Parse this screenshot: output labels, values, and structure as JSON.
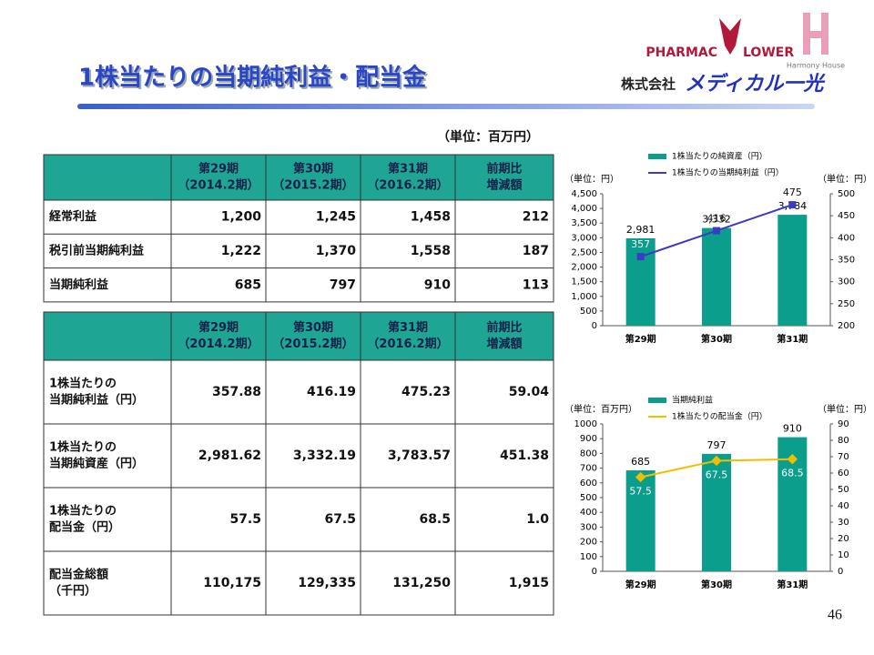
{
  "header": {
    "title": "1株当たりの当期純利益・配当金",
    "brand": "PHARMAC",
    "brand2": "LOWER",
    "brand3": "Harmony House",
    "company": "株式会社",
    "company2": "メディカル一光"
  },
  "unit": "（単位：百万円）",
  "table1": {
    "columns": [
      [
        "第29期",
        "（2014.2期）"
      ],
      [
        "第30期",
        "（2015.2期）"
      ],
      [
        "第31期",
        "（2016.2期）"
      ],
      [
        "前期比",
        "増減額"
      ]
    ],
    "rows": [
      {
        "label": [
          "経常利益"
        ],
        "values": [
          "1,200",
          "1,245",
          "1,458",
          "212"
        ]
      },
      {
        "label": [
          "税引前当期純利益"
        ],
        "values": [
          "1,222",
          "1,370",
          "1,558",
          "187"
        ]
      },
      {
        "label": [
          "当期純利益"
        ],
        "values": [
          "685",
          "797",
          "910",
          "113"
        ]
      }
    ]
  },
  "table2": {
    "columns": [
      [
        "第29期",
        "（2014.2期）"
      ],
      [
        "第30期",
        "（2015.2期）"
      ],
      [
        "第31期",
        "（2016.2期）"
      ],
      [
        "前期比",
        "増減額"
      ]
    ],
    "rows": [
      {
        "label": [
          "1株当たりの",
          "当期純利益（円）"
        ],
        "values": [
          "357.88",
          "416.19",
          "475.23",
          "59.04"
        ]
      },
      {
        "label": [
          "1株当たりの",
          "当期純資産（円）"
        ],
        "values": [
          "2,981.62",
          "3,332.19",
          "3,783.57",
          "451.38"
        ]
      },
      {
        "label": [
          "1株当たりの",
          "配当金（円）"
        ],
        "values": [
          "57.5",
          "67.5",
          "68.5",
          "1.0"
        ]
      },
      {
        "label": [
          "配当金総額",
          "（千円）"
        ],
        "values": [
          "110,175",
          "129,335",
          "131,250",
          "1,915"
        ]
      }
    ]
  },
  "chart_data": [
    {
      "type": "bar",
      "categories": [
        "第29期",
        "第30期",
        "第31期"
      ],
      "ylabel": "（単位：円）",
      "y2label": "（単位：円）",
      "ylim": [
        0,
        4500
      ],
      "yticks": [
        0,
        500,
        {
          "value": 1000,
          "label": "1,000"
        },
        {
          "value": 1500,
          "label": "1,500"
        },
        {
          "value": 2000,
          "label": "2,000"
        },
        {
          "value": 2500,
          "label": "2,500"
        },
        {
          "value": 3000,
          "label": "3,000"
        },
        {
          "value": 3500,
          "label": "3,500"
        },
        {
          "value": 4000,
          "label": "4,000"
        },
        {
          "value": 4500,
          "label": "4,500"
        }
      ],
      "y2lim": [
        200,
        500
      ],
      "y2ticks": [
        200,
        250,
        300,
        350,
        400,
        450,
        500
      ],
      "series": [
        {
          "name": "1株当たりの純資産（円）",
          "type": "bar",
          "color": "#0b9e8c",
          "values": [
            2981,
            3332,
            3784
          ],
          "value_labels": [
            "2,981",
            "3,332",
            "3,784"
          ]
        },
        {
          "name": "1株当たりの当期純利益（円）",
          "type": "line",
          "axis": "y2",
          "color": "#3b3bc4",
          "values": [
            357,
            416,
            475
          ]
        }
      ]
    },
    {
      "type": "bar",
      "categories": [
        "第29期",
        "第30期",
        "第31期"
      ],
      "ylabel": "（単位：百万円）",
      "y2label": "（単位：円）",
      "ylim": [
        0,
        1000
      ],
      "yticks": [
        0,
        100,
        200,
        300,
        400,
        500,
        600,
        700,
        800,
        900,
        1000
      ],
      "y2lim": [
        0,
        90
      ],
      "y2ticks": [
        0,
        10,
        20,
        30,
        40,
        50,
        60,
        70,
        80,
        90
      ],
      "series": [
        {
          "name": "当期純利益",
          "type": "bar",
          "color": "#0b9e8c",
          "values": [
            685,
            797,
            910
          ]
        },
        {
          "name": "1株当たりの配当金（円）",
          "type": "line",
          "axis": "y2",
          "color": "#f0c000",
          "values": [
            57.5,
            67.5,
            68.5
          ]
        }
      ]
    }
  ],
  "page_number": "46"
}
